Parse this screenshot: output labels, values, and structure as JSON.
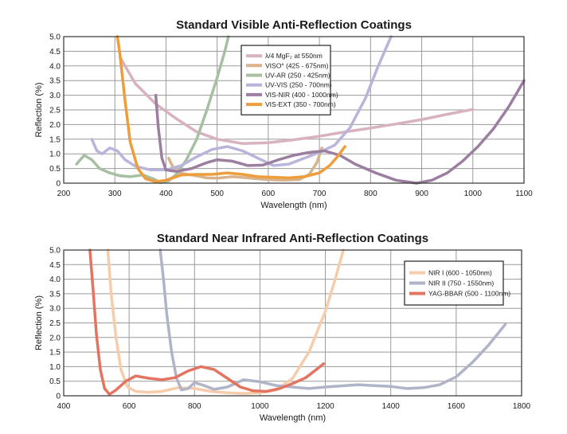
{
  "chart_data": [
    {
      "type": "line",
      "title": "Standard Visible Anti-Reflection Coatings",
      "xlabel": "Wavelength (nm)",
      "ylabel": "Reflection (%)",
      "xlim": [
        200,
        1100
      ],
      "ylim": [
        0,
        5
      ],
      "xticks": [
        "200",
        "300",
        "400",
        "500",
        "600",
        "700",
        "800",
        "900",
        "1000",
        "1100"
      ],
      "yticks": [
        "0",
        "0.5",
        "1.0",
        "1.5",
        "2.0",
        "2.5",
        "3.0",
        "3.5",
        "4.0",
        "4.5",
        "5.0"
      ],
      "grid": true,
      "legend_position": "top-center",
      "series": [
        {
          "name": "λ/4 MgF₂ at 550nm",
          "color": "#d8b2bd",
          "points": [
            [
              310,
              4.3
            ],
            [
              340,
              3.4
            ],
            [
              380,
              2.7
            ],
            [
              420,
              2.2
            ],
            [
              460,
              1.75
            ],
            [
              500,
              1.5
            ],
            [
              550,
              1.35
            ],
            [
              600,
              1.38
            ],
            [
              650,
              1.48
            ],
            [
              700,
              1.6
            ],
            [
              750,
              1.75
            ],
            [
              800,
              1.88
            ],
            [
              850,
              2.02
            ],
            [
              900,
              2.17
            ],
            [
              950,
              2.35
            ],
            [
              1000,
              2.52
            ]
          ]
        },
        {
          "name": "VISO° (425 - 675nm)",
          "color": "#d8b48c",
          "points": [
            [
              405,
              0.85
            ],
            [
              415,
              0.5
            ],
            [
              425,
              0.35
            ],
            [
              450,
              0.28
            ],
            [
              480,
              0.18
            ],
            [
              500,
              0.17
            ],
            [
              530,
              0.22
            ],
            [
              560,
              0.18
            ],
            [
              600,
              0.12
            ],
            [
              630,
              0.1
            ],
            [
              660,
              0.12
            ],
            [
              680,
              0.3
            ],
            [
              695,
              0.7
            ],
            [
              705,
              1.2
            ]
          ]
        },
        {
          "name": "UV-AR (250 - 425nm)",
          "color": "#a7c0a2",
          "points": [
            [
              225,
              0.65
            ],
            [
              240,
              0.95
            ],
            [
              255,
              0.8
            ],
            [
              270,
              0.5
            ],
            [
              290,
              0.35
            ],
            [
              310,
              0.25
            ],
            [
              330,
              0.22
            ],
            [
              355,
              0.28
            ],
            [
              375,
              0.15
            ],
            [
              390,
              0.02
            ],
            [
              405,
              0.08
            ],
            [
              420,
              0.3
            ],
            [
              440,
              0.8
            ],
            [
              460,
              1.5
            ],
            [
              480,
              2.5
            ],
            [
              500,
              3.6
            ],
            [
              515,
              4.5
            ],
            [
              522,
              5.0
            ]
          ]
        },
        {
          "name": "UV-VIS (250 - 700nm)",
          "color": "#b8b4dc",
          "points": [
            [
              255,
              1.5
            ],
            [
              265,
              1.1
            ],
            [
              275,
              1.0
            ],
            [
              290,
              1.2
            ],
            [
              305,
              1.1
            ],
            [
              320,
              0.8
            ],
            [
              340,
              0.58
            ],
            [
              370,
              0.45
            ],
            [
              400,
              0.45
            ],
            [
              430,
              0.6
            ],
            [
              460,
              0.9
            ],
            [
              490,
              1.15
            ],
            [
              520,
              1.25
            ],
            [
              550,
              1.1
            ],
            [
              580,
              0.85
            ],
            [
              610,
              0.6
            ],
            [
              640,
              0.65
            ],
            [
              670,
              0.85
            ],
            [
              700,
              1.05
            ],
            [
              730,
              1.3
            ],
            [
              760,
              1.9
            ],
            [
              790,
              2.9
            ],
            [
              815,
              4.0
            ],
            [
              840,
              5.0
            ]
          ]
        },
        {
          "name": "VIS-NIR (400 - 1000nm)",
          "color": "#9c7ea0",
          "points": [
            [
              380,
              3.0
            ],
            [
              385,
              1.9
            ],
            [
              392,
              0.85
            ],
            [
              400,
              0.45
            ],
            [
              420,
              0.4
            ],
            [
              450,
              0.5
            ],
            [
              480,
              0.7
            ],
            [
              500,
              0.8
            ],
            [
              530,
              0.75
            ],
            [
              560,
              0.6
            ],
            [
              590,
              0.62
            ],
            [
              620,
              0.8
            ],
            [
              650,
              0.95
            ],
            [
              680,
              1.05
            ],
            [
              710,
              1.1
            ],
            [
              740,
              0.95
            ],
            [
              770,
              0.65
            ],
            [
              810,
              0.35
            ],
            [
              850,
              0.1
            ],
            [
              890,
              0.0
            ],
            [
              920,
              0.1
            ],
            [
              950,
              0.35
            ],
            [
              980,
              0.75
            ],
            [
              1010,
              1.25
            ],
            [
              1040,
              1.85
            ],
            [
              1070,
              2.6
            ],
            [
              1100,
              3.5
            ]
          ]
        },
        {
          "name": "VIS-EXT (350 - 700nm)",
          "color": "#ee9d3b",
          "points": [
            [
              305,
              5.0
            ],
            [
              310,
              4.4
            ],
            [
              320,
              2.8
            ],
            [
              330,
              1.4
            ],
            [
              345,
              0.5
            ],
            [
              360,
              0.15
            ],
            [
              380,
              0.05
            ],
            [
              400,
              0.1
            ],
            [
              430,
              0.28
            ],
            [
              460,
              0.3
            ],
            [
              490,
              0.3
            ],
            [
              520,
              0.35
            ],
            [
              550,
              0.3
            ],
            [
              580,
              0.22
            ],
            [
              610,
              0.2
            ],
            [
              640,
              0.18
            ],
            [
              670,
              0.22
            ],
            [
              700,
              0.35
            ],
            [
              720,
              0.6
            ],
            [
              735,
              0.9
            ],
            [
              750,
              1.25
            ]
          ]
        }
      ]
    },
    {
      "type": "line",
      "title": "Standard Near Infrared Anti-Reflection Coatings",
      "xlabel": "Wavelength (nm)",
      "ylabel": "Reflection (%)",
      "xlim": [
        400,
        1800
      ],
      "ylim": [
        0,
        5
      ],
      "xticks": [
        "400",
        "600",
        "800",
        "1000",
        "1200",
        "1400",
        "1600",
        "1800"
      ],
      "yticks": [
        "0",
        "0.5",
        "1.0",
        "1.5",
        "2.0",
        "2.5",
        "3.0",
        "3.5",
        "4.0",
        "4.5",
        "5.0"
      ],
      "grid": true,
      "legend_position": "top-right",
      "series": [
        {
          "name": "NIR I (600 - 1050nm)",
          "color": "#f7ccaa",
          "points": [
            [
              535,
              5.0
            ],
            [
              545,
              3.5
            ],
            [
              560,
              2.0
            ],
            [
              575,
              0.9
            ],
            [
              595,
              0.3
            ],
            [
              620,
              0.15
            ],
            [
              660,
              0.12
            ],
            [
              700,
              0.15
            ],
            [
              750,
              0.28
            ],
            [
              800,
              0.25
            ],
            [
              850,
              0.15
            ],
            [
              900,
              0.1
            ],
            [
              950,
              0.08
            ],
            [
              1000,
              0.1
            ],
            [
              1050,
              0.2
            ],
            [
              1100,
              0.6
            ],
            [
              1150,
              1.5
            ],
            [
              1200,
              2.9
            ],
            [
              1230,
              4.0
            ],
            [
              1255,
              5.0
            ]
          ]
        },
        {
          "name": "NIR II (750 - 1550nm)",
          "color": "#b0b4c8",
          "points": [
            [
              695,
              5.0
            ],
            [
              705,
              4.0
            ],
            [
              715,
              2.8
            ],
            [
              730,
              1.5
            ],
            [
              745,
              0.6
            ],
            [
              760,
              0.2
            ],
            [
              780,
              0.25
            ],
            [
              800,
              0.45
            ],
            [
              830,
              0.35
            ],
            [
              860,
              0.22
            ],
            [
              900,
              0.3
            ],
            [
              950,
              0.55
            ],
            [
              1000,
              0.48
            ],
            [
              1050,
              0.35
            ],
            [
              1100,
              0.3
            ],
            [
              1150,
              0.25
            ],
            [
              1200,
              0.3
            ],
            [
              1300,
              0.38
            ],
            [
              1350,
              0.35
            ],
            [
              1400,
              0.32
            ],
            [
              1450,
              0.25
            ],
            [
              1500,
              0.28
            ],
            [
              1550,
              0.38
            ],
            [
              1600,
              0.65
            ],
            [
              1650,
              1.15
            ],
            [
              1700,
              1.75
            ],
            [
              1750,
              2.45
            ]
          ]
        },
        {
          "name": "YAG-BBAR (500 - 1100nm)",
          "color": "#e37560",
          "points": [
            [
              480,
              5.0
            ],
            [
              490,
              3.6
            ],
            [
              500,
              2.1
            ],
            [
              512,
              0.9
            ],
            [
              525,
              0.25
            ],
            [
              540,
              0.05
            ],
            [
              560,
              0.2
            ],
            [
              590,
              0.5
            ],
            [
              620,
              0.68
            ],
            [
              660,
              0.6
            ],
            [
              700,
              0.55
            ],
            [
              740,
              0.62
            ],
            [
              780,
              0.85
            ],
            [
              820,
              1.0
            ],
            [
              860,
              0.9
            ],
            [
              900,
              0.6
            ],
            [
              940,
              0.3
            ],
            [
              980,
              0.17
            ],
            [
              1020,
              0.15
            ],
            [
              1060,
              0.25
            ],
            [
              1100,
              0.42
            ],
            [
              1140,
              0.62
            ],
            [
              1170,
              0.88
            ],
            [
              1195,
              1.1
            ]
          ]
        }
      ]
    }
  ]
}
